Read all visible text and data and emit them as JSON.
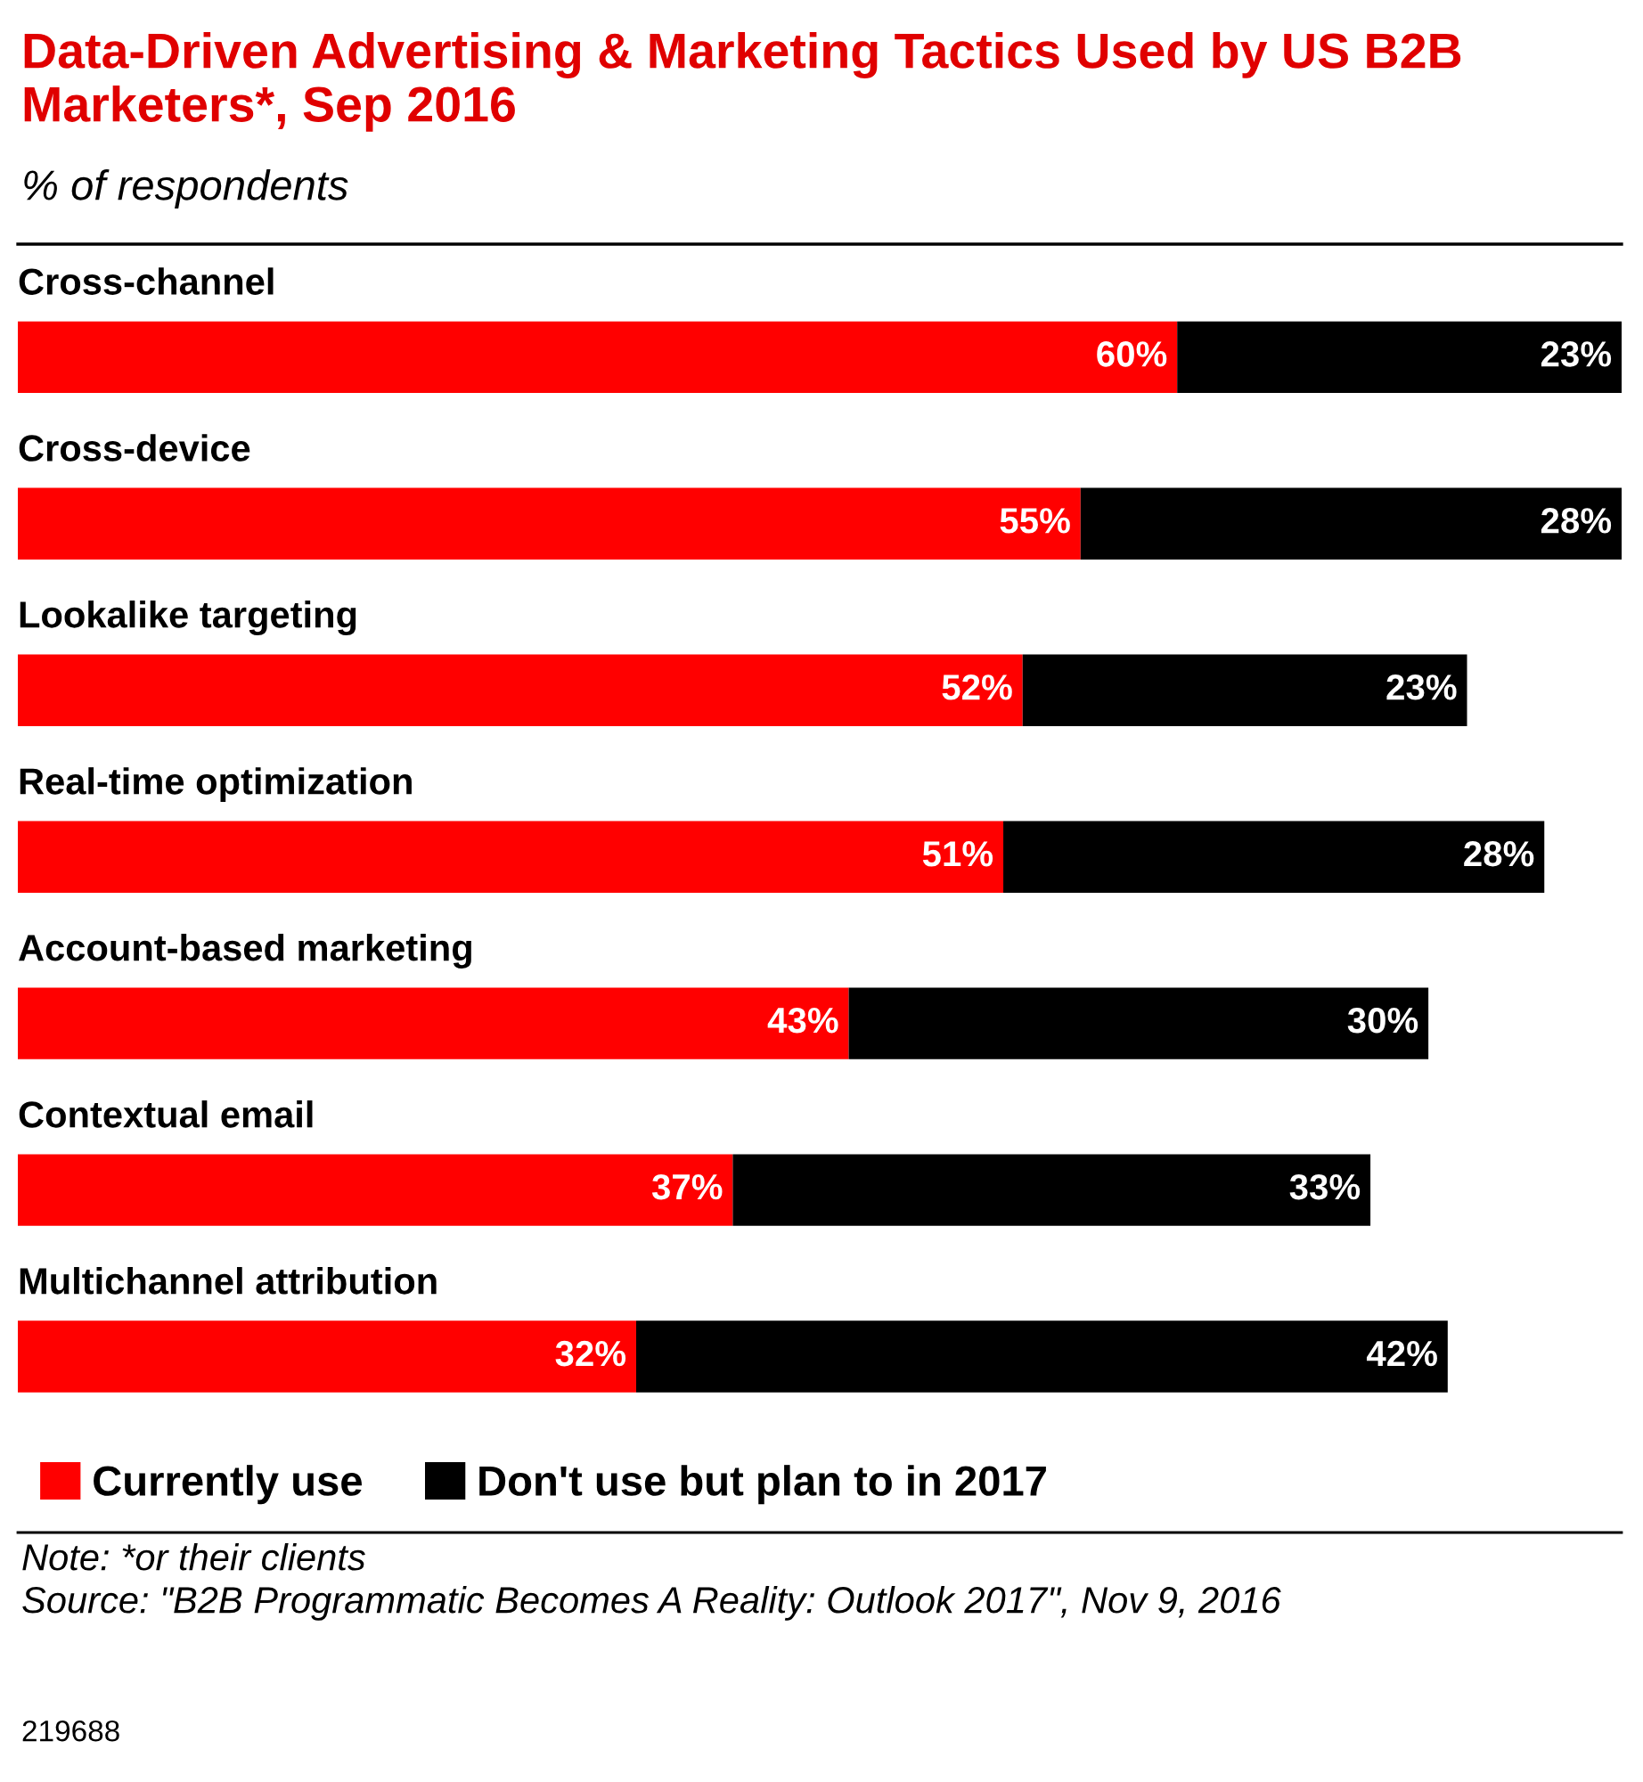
{
  "chart_data": {
    "type": "bar",
    "orientation": "horizontal",
    "stacked": true,
    "title": "Data-Driven Advertising & Marketing Tactics Used by US B2B Marketers*, Sep 2016",
    "subtitle": "% of respondents",
    "categories": [
      "Cross-channel",
      "Cross-device",
      "Lookalike targeting",
      "Real-time optimization",
      "Account-based marketing",
      "Contextual email",
      "Multichannel attribution"
    ],
    "series": [
      {
        "name": "Currently use",
        "color": "#ff0000",
        "values": [
          60,
          55,
          52,
          51,
          43,
          37,
          32
        ],
        "value_labels": [
          "60%",
          "55%",
          "52%",
          "51%",
          "43%",
          "37%",
          "32%"
        ]
      },
      {
        "name": "Don't use but plan to in 2017",
        "color": "#000000",
        "values": [
          23,
          28,
          23,
          28,
          30,
          33,
          42
        ],
        "value_labels": [
          "23%",
          "28%",
          "23%",
          "28%",
          "30%",
          "33%",
          "42%"
        ]
      }
    ],
    "legend": "bottom",
    "annotations": [
      "Note: *or their clients",
      "Source: \"B2B Programmatic Becomes A Reality: Outlook 2017\", Nov 9, 2016",
      "219688"
    ]
  }
}
